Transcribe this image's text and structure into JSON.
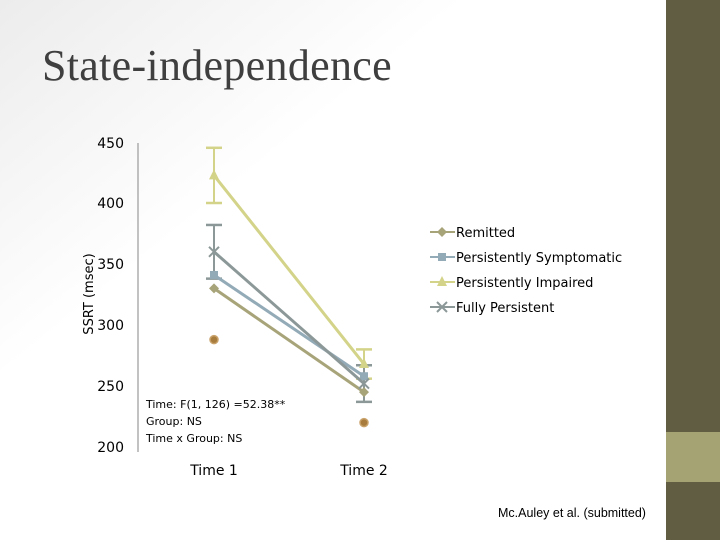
{
  "slide": {
    "title": "State-independence",
    "citation": "Mc.Auley et al. (submitted)"
  },
  "chart_data": {
    "type": "line",
    "categories": [
      "Time 1",
      "Time 2"
    ],
    "ylabel": "SSRT (msec)",
    "xlabel": "",
    "ylim": [
      200,
      450
    ],
    "yticks": [
      200,
      250,
      300,
      350,
      400,
      450
    ],
    "legend_position": "right",
    "grid": false,
    "series": [
      {
        "name": "Remitted",
        "values": [
          330,
          245
        ],
        "errors": [
          null,
          null
        ],
        "color": "#a8a47a",
        "marker": "diamond"
      },
      {
        "name": "Persistently Symptomatic",
        "values": [
          341,
          258
        ],
        "errors": [
          null,
          null
        ],
        "color": "#93aab7",
        "marker": "square"
      },
      {
        "name": "Persistently Impaired",
        "values": [
          423,
          268
        ],
        "errors": [
          23,
          12
        ],
        "color": "#d3d389",
        "marker": "triangle"
      },
      {
        "name": "Fully Persistent",
        "values": [
          360,
          252
        ],
        "errors": [
          22,
          15
        ],
        "color": "#8c9898",
        "marker": "x"
      }
    ],
    "extra_points": [
      {
        "category": "Time 1",
        "value": 288,
        "color": "#a87c3c"
      },
      {
        "category": "Time 2",
        "value": 220,
        "color": "#a87c3c"
      }
    ],
    "annotation_lines": [
      "Time: F(1, 126) =52.38**",
      "Group: NS",
      "Time x Group: NS"
    ]
  }
}
